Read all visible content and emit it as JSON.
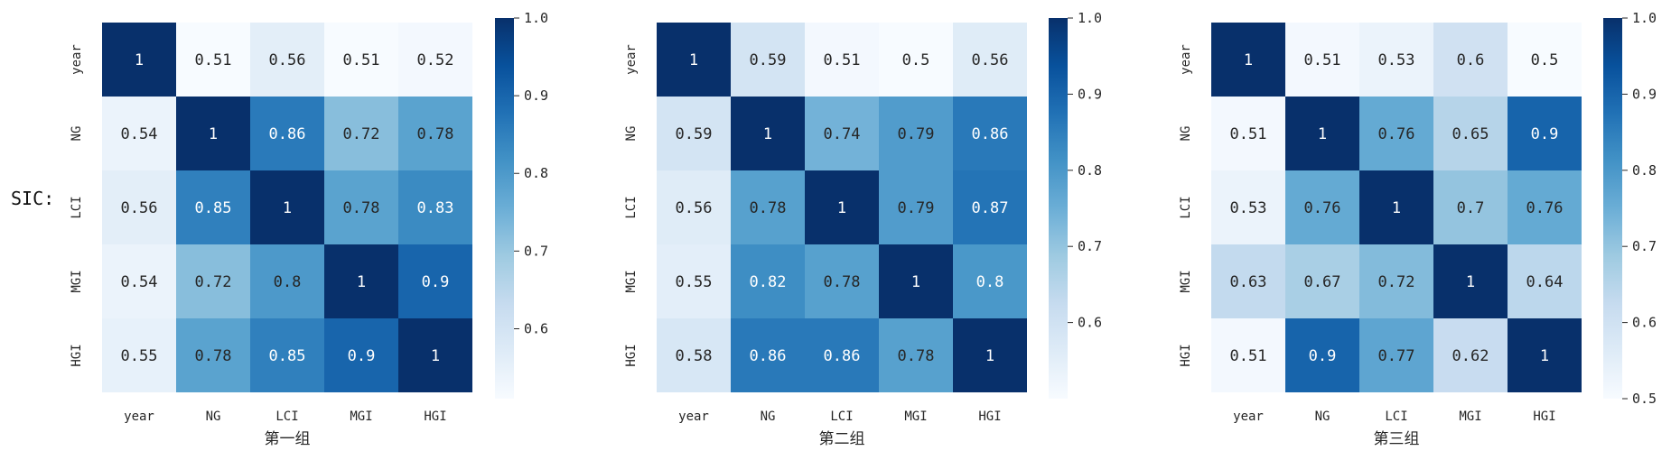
{
  "side_label": "SIC:",
  "chart_data": [
    {
      "type": "heatmap",
      "title": "",
      "xlabel": "第一组",
      "ylabel": "",
      "categories": [
        "year",
        "NG",
        "LCI",
        "MGI",
        "HGI"
      ],
      "values": [
        [
          1,
          0.51,
          0.56,
          0.51,
          0.52
        ],
        [
          0.54,
          1,
          0.86,
          0.72,
          0.78
        ],
        [
          0.56,
          0.85,
          1,
          0.78,
          0.83
        ],
        [
          0.54,
          0.72,
          0.8,
          1,
          0.9
        ],
        [
          0.55,
          0.78,
          0.85,
          0.9,
          1
        ]
      ],
      "colorbar": {
        "ticks": [
          0.6,
          0.7,
          0.8,
          0.9,
          1.0
        ],
        "tick_labels": [
          "0.6",
          "0.7",
          "0.8",
          "0.9",
          "1.0"
        ],
        "vmin": 0.51,
        "vmax": 1.0
      },
      "colormap": "Blues"
    },
    {
      "type": "heatmap",
      "title": "",
      "xlabel": "第二组",
      "ylabel": "",
      "categories": [
        "year",
        "NG",
        "LCI",
        "MGI",
        "HGI"
      ],
      "values": [
        [
          1,
          0.59,
          0.51,
          0.5,
          0.56
        ],
        [
          0.59,
          1,
          0.74,
          0.79,
          0.86
        ],
        [
          0.56,
          0.78,
          1,
          0.79,
          0.87
        ],
        [
          0.55,
          0.82,
          0.78,
          1,
          0.8
        ],
        [
          0.58,
          0.86,
          0.86,
          0.78,
          1
        ]
      ],
      "colorbar": {
        "ticks": [
          0.6,
          0.7,
          0.8,
          0.9,
          1.0
        ],
        "tick_labels": [
          "0.6",
          "0.7",
          "0.8",
          "0.9",
          "1.0"
        ],
        "vmin": 0.5,
        "vmax": 1.0
      },
      "colormap": "Blues"
    },
    {
      "type": "heatmap",
      "title": "",
      "xlabel": "第三组",
      "ylabel": "",
      "categories": [
        "year",
        "NG",
        "LCI",
        "MGI",
        "HGI"
      ],
      "values": [
        [
          1,
          0.51,
          0.53,
          0.6,
          0.5
        ],
        [
          0.51,
          1,
          0.76,
          0.65,
          0.9
        ],
        [
          0.53,
          0.76,
          1,
          0.7,
          0.76
        ],
        [
          0.63,
          0.67,
          0.72,
          1,
          0.64
        ],
        [
          0.51,
          0.9,
          0.77,
          0.62,
          1
        ]
      ],
      "colorbar": {
        "ticks": [
          0.5,
          0.6,
          0.7,
          0.8,
          0.9,
          1.0
        ],
        "tick_labels": [
          "0.5",
          "0.6",
          "0.7",
          "0.8",
          "0.9",
          "1.0"
        ],
        "vmin": 0.5,
        "vmax": 1.0
      },
      "colormap": "Blues"
    }
  ]
}
